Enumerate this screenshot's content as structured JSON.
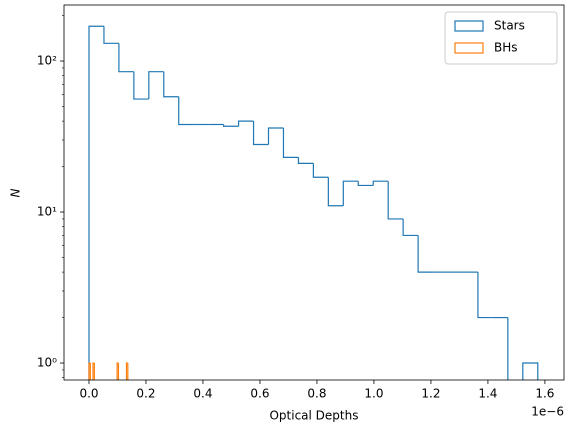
{
  "chart_data": {
    "type": "histogram",
    "xlabel": "Optical Depths",
    "ylabel": "N",
    "x_offset_label": "1e−6",
    "xlim": [
      -0.0877,
      1.667
    ],
    "xticks": [
      {
        "value": 0,
        "label": "0.0"
      },
      0.2,
      0.4,
      0.6,
      0.8,
      {
        "value": 1,
        "label": "1.0"
      },
      1.2,
      1.4,
      1.6
    ],
    "ylim": [
      0.772,
      235
    ],
    "log_y": true,
    "yticks": [
      {
        "value": 1,
        "label": "10⁰"
      },
      {
        "value": 10,
        "label": "10¹"
      },
      {
        "value": 100,
        "label": "10²"
      }
    ],
    "yminor_ticks": [
      0.8,
      0.9,
      2,
      3,
      4,
      5,
      6,
      7,
      8,
      9,
      20,
      30,
      40,
      50,
      60,
      70,
      80,
      90,
      200
    ],
    "legend": "upper right",
    "series": [
      {
        "name": "Stars",
        "color": "#1f77b4",
        "bins": [
          0,
          0.0525,
          0.105,
          0.1575,
          0.21,
          0.2625,
          0.315,
          0.3675,
          0.42,
          0.4725,
          0.525,
          0.5775,
          0.63,
          0.6825,
          0.735,
          0.7875,
          0.84,
          0.8925,
          0.945,
          0.9975,
          1.05,
          1.1025,
          1.155,
          1.2075,
          1.26,
          1.3125,
          1.365,
          1.4175,
          1.47,
          1.5225,
          1.575
        ],
        "values": [
          170,
          131,
          85,
          56,
          85,
          58,
          38,
          38,
          38,
          37,
          40,
          28,
          36,
          23,
          21,
          17,
          11,
          16,
          15,
          16,
          9,
          7,
          4,
          4,
          4,
          4,
          2,
          2,
          0,
          1
        ]
      },
      {
        "name": "BHs",
        "color": "#ff7f0e",
        "bins": [
          0,
          0.0047,
          0.0094,
          0.0141,
          0.0188,
          0.0235,
          0.0282,
          0.0329,
          0.0376,
          0.0423,
          0.047,
          0.0517,
          0.0564,
          0.0611,
          0.0658,
          0.0705,
          0.0752,
          0.0799,
          0.0846,
          0.0893,
          0.094,
          0.0987,
          0.1034,
          0.1081,
          0.1128,
          0.1175,
          0.1222,
          0.1269,
          0.1316,
          0.1363,
          0.141
        ],
        "values": [
          1,
          0,
          0,
          1,
          0,
          0,
          0,
          0,
          0,
          0,
          0,
          0,
          0,
          0,
          0,
          0,
          0,
          0,
          0,
          0,
          0,
          1,
          0,
          0,
          0,
          0,
          0,
          0,
          1,
          0
        ]
      }
    ]
  }
}
